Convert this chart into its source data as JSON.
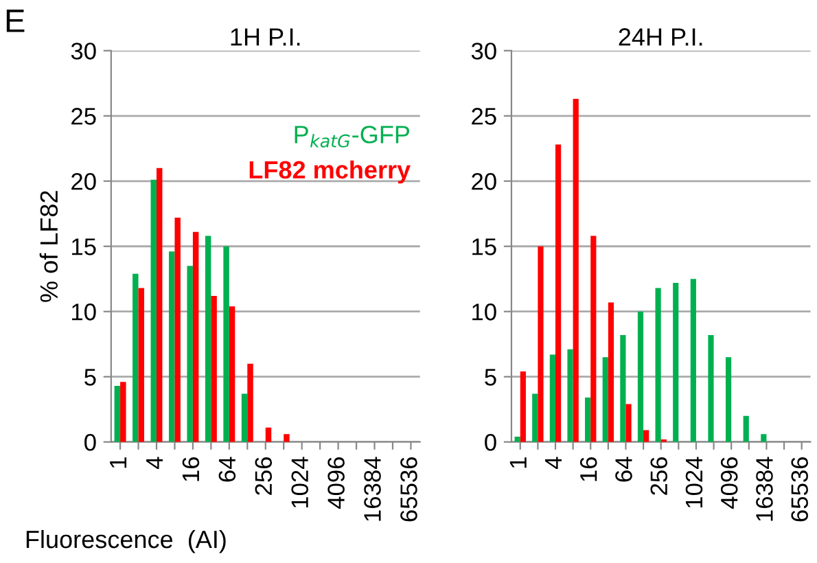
{
  "chart_data": [
    {
      "type": "bar",
      "title": "1H P.I.",
      "ylabel": "% of LF82",
      "xlabel": "Fluorescence  (AI)",
      "annotations": [
        "E"
      ],
      "categories": [
        "1",
        null,
        "4",
        null,
        "16",
        null,
        "64",
        null,
        "256",
        null,
        "1024",
        null,
        "4096",
        null,
        "16384",
        null,
        "65536"
      ],
      "series": [
        {
          "name": "P$_{katG}$-GFP",
          "color": "#00b050",
          "values": [
            4.3,
            12.9,
            20.1,
            14.6,
            13.5,
            15.8,
            15.0,
            3.7,
            0,
            0,
            0,
            0,
            0,
            0,
            0,
            0,
            0
          ]
        },
        {
          "name": "LF82 mcherry",
          "color": "#ff0000",
          "values": [
            4.6,
            11.8,
            21.0,
            17.2,
            16.1,
            11.2,
            10.4,
            6.0,
            1.1,
            0.6,
            0,
            0,
            0,
            0,
            0,
            0,
            0
          ]
        }
      ],
      "ylim": [
        0,
        30
      ],
      "yticks": [
        0,
        5,
        10,
        15,
        20,
        25,
        30
      ],
      "grid": "y",
      "legend": "top right"
    },
    {
      "type": "bar",
      "title": "24H P.I.",
      "categories": [
        "1",
        null,
        "4",
        null,
        "16",
        null,
        "64",
        null,
        "256",
        null,
        "1024",
        null,
        "4096",
        null,
        "16384",
        null,
        "65536"
      ],
      "series": [
        {
          "color": "#00b050",
          "values": [
            0.4,
            3.7,
            6.7,
            7.1,
            3.4,
            6.5,
            8.2,
            10.0,
            11.8,
            12.2,
            12.5,
            8.2,
            6.5,
            2.0,
            0.6,
            0,
            0
          ]
        },
        {
          "color": "#ff0000",
          "values": [
            5.4,
            15.0,
            22.8,
            26.3,
            15.8,
            10.7,
            2.9,
            0.9,
            0.2,
            0,
            0,
            0,
            0,
            0,
            0,
            0,
            0
          ]
        }
      ],
      "ylim": [
        0,
        30
      ],
      "yticks": [
        0,
        5,
        10,
        15,
        20,
        25,
        30
      ],
      "grid": "y"
    }
  ]
}
